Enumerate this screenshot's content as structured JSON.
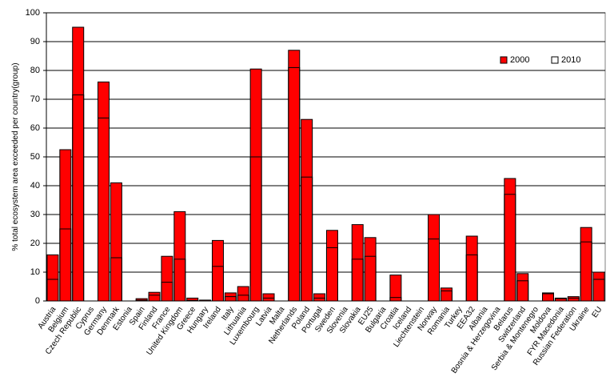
{
  "chart_data": {
    "type": "bar",
    "ylabel": "% total ecosystem area exceeded per country(group)",
    "categories": [
      "Austria",
      "Belgium",
      "Czech Republic",
      "Cyprus",
      "Germany",
      "Denmark",
      "Estonia",
      "Spain",
      "Finland",
      "France",
      "United Kingdom",
      "Greece",
      "Hungary",
      "Ireland",
      "Italy",
      "Lithuania",
      "Luxembourg",
      "Latvia",
      "Malta",
      "Netherlands",
      "Poland",
      "Portugal",
      "Sweden",
      "Slovenia",
      "Slovakia",
      "EU25",
      "Bulgaria",
      "Croatia",
      "Iceland",
      "Liechtenstein",
      "Norway",
      "Romania",
      "Turkey",
      "EEA32",
      "Albania",
      "Bosnia & Herzegovina",
      "Belarus",
      "Switzerland",
      "Serbia & Montenegro",
      "Moldova",
      "FYR Macedonia",
      "Russian Federation",
      "Ukraine",
      "EU"
    ],
    "series": [
      {
        "name": "2000",
        "color": "#ff0000",
        "values": [
          16,
          52.5,
          95,
          0,
          76,
          41,
          0,
          0.8,
          3,
          15.5,
          31,
          1,
          0.3,
          21,
          2.8,
          5,
          80.5,
          2.5,
          0,
          87,
          63,
          2.5,
          24.5,
          0,
          26.5,
          22,
          0,
          9,
          0,
          0,
          30,
          4.5,
          0,
          22.5,
          0,
          0,
          42.5,
          9.5,
          0,
          2.8,
          1,
          1.5,
          25.5,
          10
        ]
      },
      {
        "name": "2010",
        "color": "#ffffff",
        "values": [
          7.5,
          25,
          71.5,
          0,
          63.5,
          15,
          0,
          0.3,
          2,
          6.5,
          14.5,
          0.2,
          0,
          12,
          1.5,
          2,
          50,
          1,
          0,
          81,
          43,
          1,
          18.5,
          0,
          14.5,
          15.5,
          0,
          1.2,
          0,
          0,
          21.5,
          3.5,
          0,
          16,
          0,
          0,
          37,
          7,
          0,
          2.5,
          0.8,
          1,
          20.5,
          7.5
        ]
      }
    ],
    "ylim": [
      0,
      100
    ],
    "yticks": [
      0,
      10,
      20,
      30,
      40,
      50,
      60,
      70,
      80,
      90,
      100
    ],
    "grid": true,
    "legend": "top-right"
  }
}
